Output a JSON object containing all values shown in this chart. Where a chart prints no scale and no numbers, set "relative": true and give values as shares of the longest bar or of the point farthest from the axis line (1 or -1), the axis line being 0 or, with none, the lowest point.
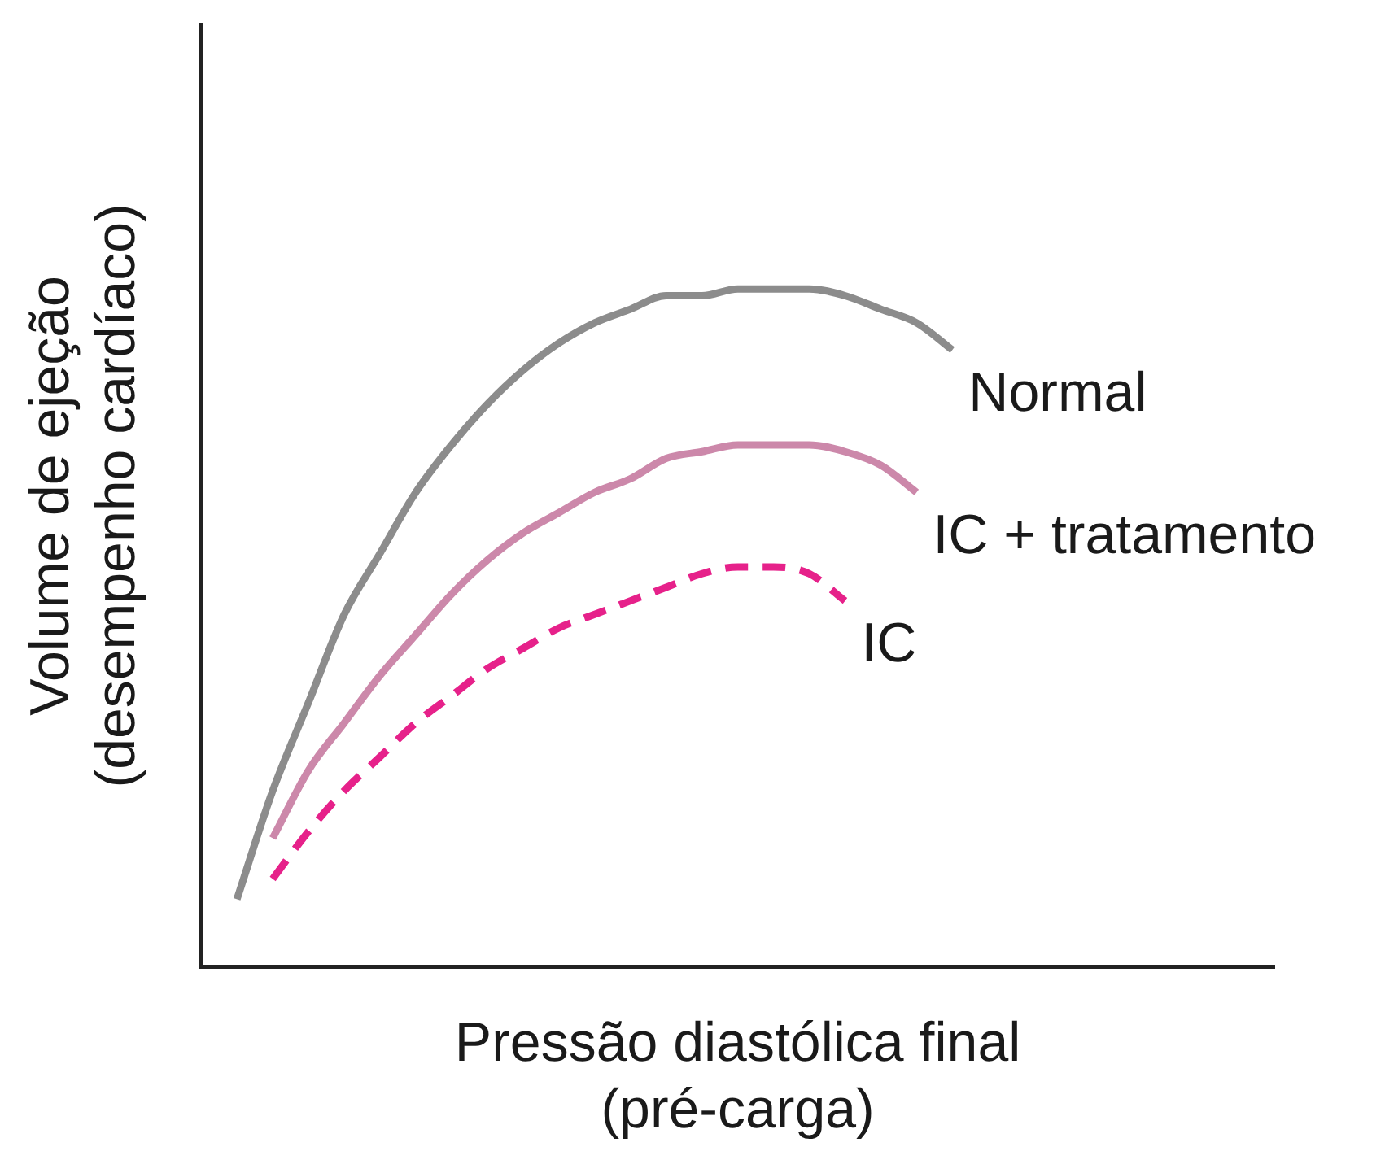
{
  "chart_data": {
    "type": "line",
    "relative": true,
    "xlabel": "Pressão diastólica final\n(pré-carga)",
    "ylabel": "Volume de ejeção\n(desempenho cardíaco)",
    "legend": false,
    "grid": false,
    "marker": "none",
    "categories": [
      null,
      null,
      null,
      null,
      null,
      null,
      null,
      null,
      null,
      null,
      null,
      null,
      null,
      null,
      null,
      null,
      null,
      null,
      null,
      null,
      null,
      null,
      null,
      null,
      null,
      null,
      null,
      null,
      null,
      null,
      null
    ],
    "series": [
      {
        "name": "Normal",
        "color": "#8c8c8c",
        "line_style": "solid",
        "values": [
          null,
          0.1,
          0.26,
          0.39,
          0.52,
          0.61,
          0.7,
          0.77,
          0.83,
          0.88,
          0.92,
          0.95,
          0.97,
          0.99,
          0.99,
          1,
          1,
          1,
          0.99,
          0.97,
          0.95,
          0.91,
          null,
          null,
          null,
          null,
          null,
          null,
          null,
          null,
          null
        ]
      },
      {
        "name": "IC + tratamento",
        "color": "#cc88aa",
        "line_style": "solid",
        "values": [
          null,
          null,
          0.19,
          0.29,
          0.36,
          0.43,
          0.49,
          0.55,
          0.6,
          0.64,
          0.67,
          0.7,
          0.72,
          0.75,
          0.76,
          0.77,
          0.77,
          0.77,
          0.76,
          0.74,
          0.7,
          null,
          null,
          null,
          null,
          null,
          null,
          null,
          null,
          null,
          null
        ]
      },
      {
        "name": "IC",
        "color": "#e6218a",
        "line_style": "dashed",
        "values": [
          null,
          null,
          0.13,
          0.2,
          0.26,
          0.31,
          0.36,
          0.4,
          0.44,
          0.47,
          0.5,
          0.52,
          0.54,
          0.56,
          0.58,
          0.59,
          0.59,
          0.58,
          0.54,
          null,
          null,
          null,
          null,
          null,
          null,
          null,
          null,
          null,
          null,
          null,
          null
        ]
      }
    ]
  }
}
